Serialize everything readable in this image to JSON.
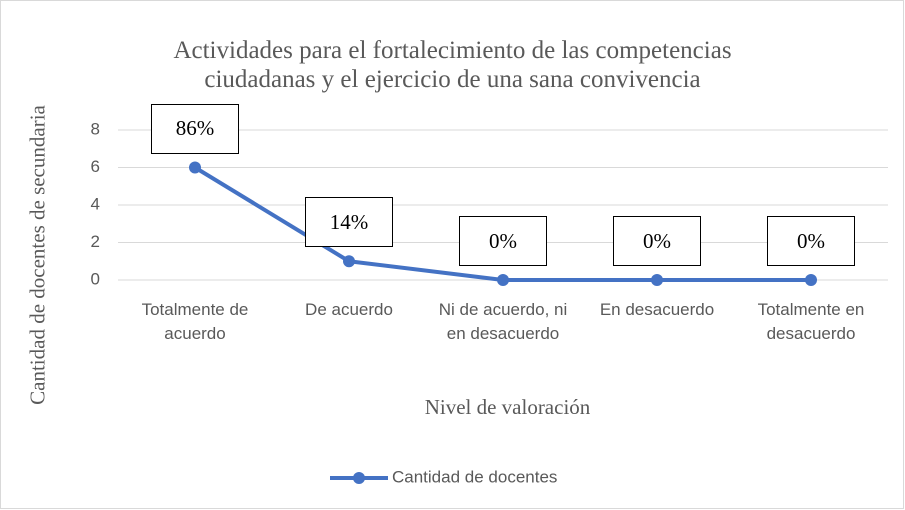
{
  "chart_data": {
    "type": "line",
    "title": [
      "Actividades para el fortalecimiento de las competencias",
      "ciudadanas y el ejercicio de una sana convivencia"
    ],
    "x_label": "Nivel de valoración",
    "y_label": "Cantidad de docentes de secundaria",
    "categories": [
      "Totalmente de acuerdo",
      "De acuerdo",
      "Ni de acuerdo, ni en desacuerdo",
      "En desacuerdo",
      "Totalmente en desacuerdo"
    ],
    "series": [
      {
        "name": "Cantidad de docentes",
        "color": "#4472c4",
        "values": [
          6,
          1,
          0,
          0,
          0
        ]
      }
    ],
    "annotations": [
      "86%",
      "14%",
      "0%",
      "0%",
      "0%"
    ],
    "ylim": [
      0,
      8
    ],
    "yticks": [
      0,
      2,
      4,
      6,
      8
    ],
    "grid": true,
    "legend": "bottom"
  }
}
